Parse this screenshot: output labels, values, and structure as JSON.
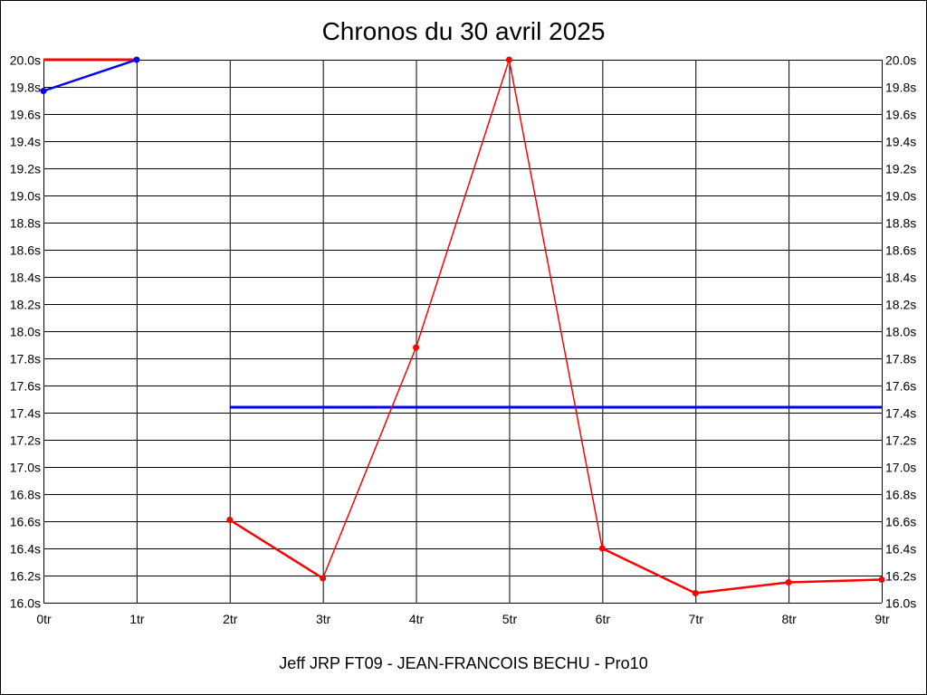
{
  "chart_data": {
    "type": "line",
    "title": "Chronos du 30 avril 2025",
    "footer": "Jeff JRP FT09 - JEAN-FRANCOIS BECHU - Pro10",
    "categories": [
      "0tr",
      "1tr",
      "2tr",
      "3tr",
      "4tr",
      "5tr",
      "6tr",
      "7tr",
      "8tr",
      "9tr"
    ],
    "y_ticks": [
      "16.0s",
      "16.2s",
      "16.4s",
      "16.6s",
      "16.8s",
      "17.0s",
      "17.2s",
      "17.4s",
      "17.6s",
      "17.8s",
      "18.0s",
      "18.2s",
      "18.4s",
      "18.6s",
      "18.8s",
      "19.0s",
      "19.2s",
      "19.4s",
      "19.6s",
      "19.8s",
      "20.0s"
    ],
    "ylim": [
      16.0,
      20.0
    ],
    "grid": true,
    "series": [
      {
        "color": "#ff0000",
        "markers": false,
        "x": [
          0,
          1
        ],
        "values": [
          20.0,
          20.0
        ]
      },
      {
        "color": "#0000ff",
        "markers": true,
        "x": [
          0,
          1
        ],
        "values": [
          19.77,
          20.0
        ]
      },
      {
        "color": "#0000ff",
        "markers": false,
        "x": [
          2,
          9
        ],
        "values": [
          17.44,
          17.44
        ]
      },
      {
        "color": "#ff0000",
        "markers": true,
        "x": [
          2,
          3,
          4,
          5,
          6,
          7,
          8,
          9
        ],
        "values": [
          16.61,
          16.18,
          17.88,
          20.0,
          16.4,
          16.07,
          16.15,
          16.17
        ]
      }
    ]
  }
}
